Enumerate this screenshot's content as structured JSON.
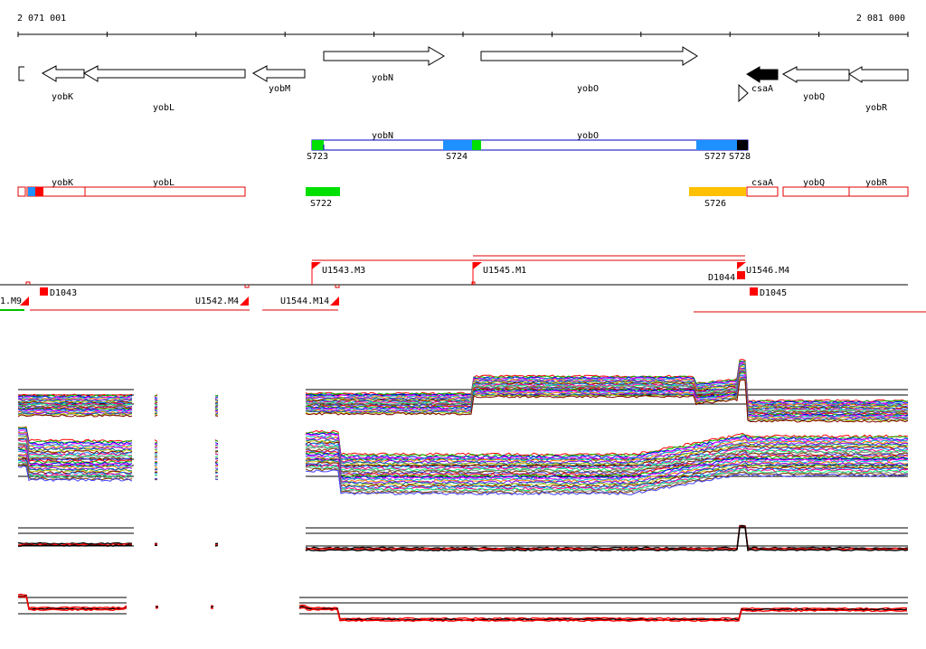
{
  "ruler": {
    "start_label": "2 071 001",
    "end_label": "2 081 000"
  },
  "genes_annotation": [
    {
      "id": "g0",
      "label": "",
      "strand": "-",
      "color": "#ffffff"
    },
    {
      "id": "yobK",
      "label": "yobK",
      "strand": "-",
      "color": "#ffffff"
    },
    {
      "id": "yobL",
      "label": "yobL",
      "strand": "-",
      "color": "#ffffff"
    },
    {
      "id": "yobM",
      "label": "yobM",
      "strand": "-",
      "color": "#ffffff"
    },
    {
      "id": "yobN",
      "label": "yobN",
      "strand": "+",
      "color": "#ffffff"
    },
    {
      "id": "yobO",
      "label": "yobO",
      "strand": "+",
      "color": "#ffffff"
    },
    {
      "id": "csaA_small",
      "label": "",
      "strand": "+",
      "color": "#ffffff"
    },
    {
      "id": "csaA",
      "label": "csaA",
      "strand": "-",
      "color": "#000000"
    },
    {
      "id": "yobQ",
      "label": "yobQ",
      "strand": "-",
      "color": "#ffffff"
    },
    {
      "id": "yobR",
      "label": "yobR",
      "strand": "-",
      "color": "#ffffff"
    }
  ],
  "transcripts_plus": {
    "gene_labels": [
      "yobN",
      "yobO"
    ],
    "segments": [
      {
        "label": "S723",
        "color": "#00e000"
      },
      {
        "label": "S724",
        "color": "#1e90ff"
      },
      {
        "label": "S727",
        "color": "#1e90ff"
      },
      {
        "label": "S728",
        "color": "#000000"
      }
    ]
  },
  "transcripts_minus": {
    "gene_labels": [
      "yobK",
      "yobL",
      "csaA",
      "yobQ",
      "yobR"
    ],
    "segments": [
      {
        "label": "S722",
        "color": "#00e000"
      },
      {
        "label": "S726",
        "color": "#ffc000"
      }
    ]
  },
  "upstream_features": [
    {
      "label": "U1543.M3"
    },
    {
      "label": "U1545.M1"
    },
    {
      "label": "U1546.M4"
    },
    {
      "label": "D1044"
    },
    {
      "label": "1.M9"
    },
    {
      "label": "D1043"
    },
    {
      "label": "U1542.M4"
    },
    {
      "label": "U1544.M14"
    },
    {
      "label": "D1045"
    }
  ],
  "expression_tracks": [
    {
      "name": "track-1",
      "style": "multicolor"
    },
    {
      "name": "track-2",
      "style": "multicolor"
    },
    {
      "name": "track-3",
      "style": "red-black"
    },
    {
      "name": "track-4",
      "style": "red-black"
    }
  ],
  "colors": {
    "outline_red": "#e00000",
    "feature_red": "#ff0000",
    "blue_outline": "#0000c0",
    "green": "#00e000",
    "blue": "#1e90ff",
    "yellow": "#ffc000"
  }
}
